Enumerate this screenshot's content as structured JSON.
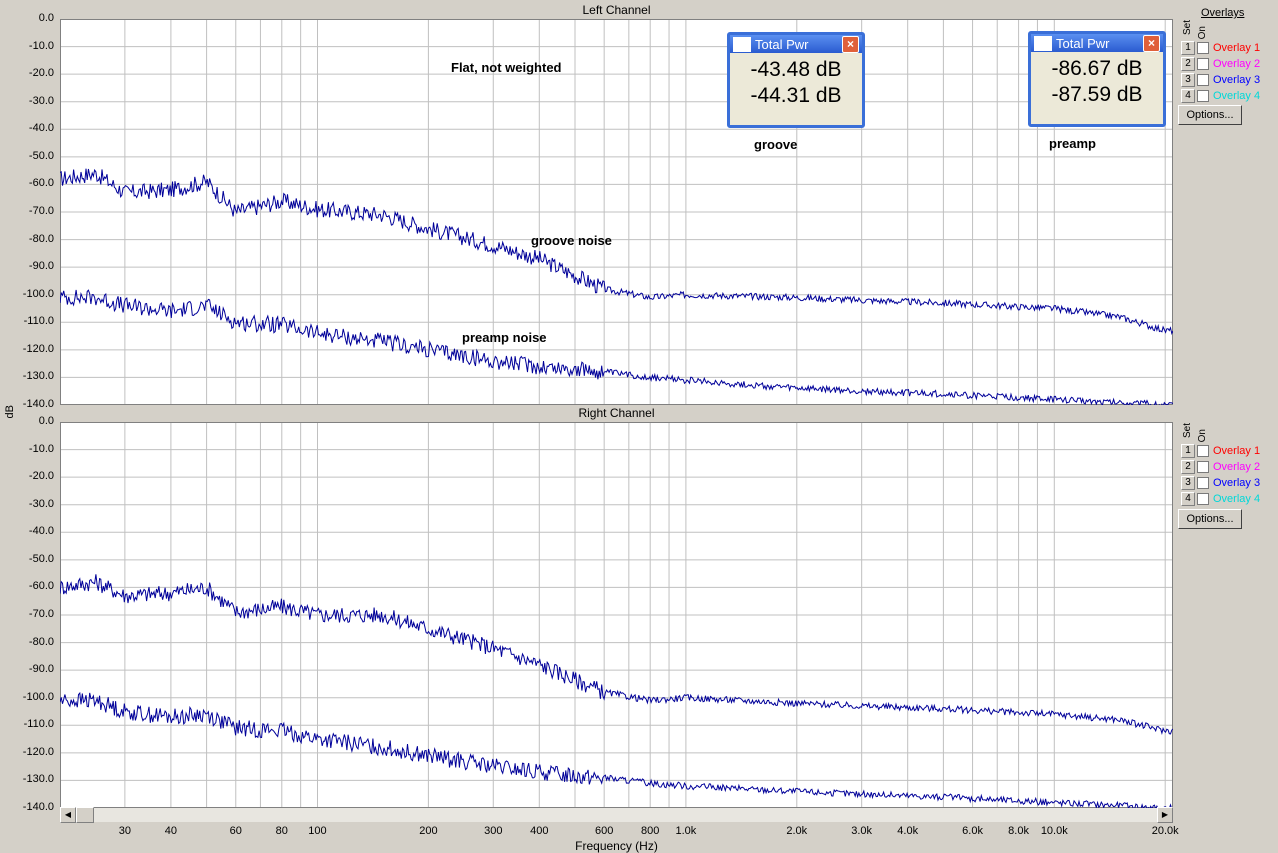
{
  "ylabel": "dB",
  "xlabel": "Frequency (Hz)",
  "annotations": {
    "flat": "Flat, not weighted",
    "groove": "groove",
    "preamp": "preamp",
    "groove_noise": "groove noise",
    "preamp_noise": "preamp noise"
  },
  "total_pwr": [
    {
      "title": "Total Pwr",
      "value1": "-43.48 dB",
      "value2": "-44.31 dB"
    },
    {
      "title": "Total Pwr",
      "value1": "-86.67 dB",
      "value2": "-87.59 dB"
    }
  ],
  "overlays": {
    "header": "Overlays",
    "set_label": "Set",
    "on_label": "On",
    "options_label": "Options...",
    "items": [
      {
        "num": "1",
        "label": "Overlay 1",
        "color": "#ff0000"
      },
      {
        "num": "2",
        "label": "Overlay 2",
        "color": "#ff00ff"
      },
      {
        "num": "3",
        "label": "Overlay 3",
        "color": "#0000ff"
      },
      {
        "num": "4",
        "label": "Overlay 4",
        "color": "#00d8d8"
      }
    ]
  },
  "colors": {
    "trace": "#000099",
    "grid": "#c0c0c0",
    "plot_bg": "#ffffff",
    "window_bg": "#d4d0c8"
  },
  "chart_data": [
    {
      "type": "line",
      "title": "Left Channel",
      "xscale": "log",
      "xlim": [
        20,
        21000
      ],
      "ylim": [
        -140,
        0
      ],
      "grid": true,
      "yticks": [
        "0.0",
        "-10.0",
        "-20.0",
        "-30.0",
        "-40.0",
        "-50.0",
        "-60.0",
        "-70.0",
        "-80.0",
        "-90.0",
        "-100.0",
        "-110.0",
        "-120.0",
        "-130.0",
        "-140.0"
      ],
      "series": [
        {
          "x": [
            20,
            25,
            30,
            40,
            50,
            60,
            80,
            100,
            150,
            200,
            300,
            400,
            600,
            800,
            1000,
            2000,
            3000,
            5000,
            10000,
            15000,
            20000
          ],
          "y": [
            -58,
            -56,
            -63,
            -62,
            -59,
            -70,
            -66,
            -69,
            -71,
            -76,
            -82,
            -87,
            -98,
            -101,
            -100,
            -101,
            -102,
            -103,
            -105,
            -108,
            -113
          ]
        },
        {
          "x": [
            20,
            25,
            30,
            40,
            50,
            60,
            80,
            100,
            150,
            200,
            300,
            400,
            600,
            800,
            1000,
            2000,
            3000,
            5000,
            10000,
            15000,
            20000
          ],
          "y": [
            -101,
            -101,
            -104,
            -106,
            -104,
            -110,
            -111,
            -114,
            -117,
            -120,
            -124,
            -126,
            -128,
            -130,
            -131,
            -134,
            -135,
            -136,
            -138,
            -139,
            -140
          ]
        }
      ]
    },
    {
      "type": "line",
      "title": "Right Channel",
      "xscale": "log",
      "xlim": [
        20,
        21000
      ],
      "ylim": [
        -140,
        0
      ],
      "grid": true,
      "yticks": [
        "0.0",
        "-10.0",
        "-20.0",
        "-30.0",
        "-40.0",
        "-50.0",
        "-60.0",
        "-70.0",
        "-80.0",
        "-90.0",
        "-100.0",
        "-110.0",
        "-120.0",
        "-130.0",
        "-140.0"
      ],
      "xtick_labels": [
        {
          "v": 30,
          "t": "30"
        },
        {
          "v": 40,
          "t": "40"
        },
        {
          "v": 60,
          "t": "60"
        },
        {
          "v": 80,
          "t": "80"
        },
        {
          "v": 100,
          "t": "100"
        },
        {
          "v": 200,
          "t": "200"
        },
        {
          "v": 300,
          "t": "300"
        },
        {
          "v": 400,
          "t": "400"
        },
        {
          "v": 600,
          "t": "600"
        },
        {
          "v": 800,
          "t": "800"
        },
        {
          "v": 1000,
          "t": "1.0k"
        },
        {
          "v": 2000,
          "t": "2.0k"
        },
        {
          "v": 3000,
          "t": "3.0k"
        },
        {
          "v": 4000,
          "t": "4.0k"
        },
        {
          "v": 6000,
          "t": "6.0k"
        },
        {
          "v": 8000,
          "t": "8.0k"
        },
        {
          "v": 10000,
          "t": "10.0k"
        },
        {
          "v": 20000,
          "t": "20.0k"
        }
      ],
      "series": [
        {
          "x": [
            20,
            25,
            30,
            40,
            50,
            60,
            80,
            100,
            150,
            200,
            300,
            400,
            600,
            800,
            1000,
            2000,
            3000,
            5000,
            10000,
            15000,
            20000
          ],
          "y": [
            -60,
            -58,
            -63,
            -62,
            -60,
            -69,
            -67,
            -70,
            -70,
            -75,
            -82,
            -88,
            -98,
            -101,
            -100,
            -102,
            -103,
            -104,
            -106,
            -108,
            -112
          ]
        },
        {
          "x": [
            20,
            25,
            30,
            40,
            50,
            60,
            80,
            100,
            150,
            200,
            300,
            400,
            600,
            800,
            1000,
            2000,
            3000,
            5000,
            10000,
            15000,
            20000
          ],
          "y": [
            -101,
            -101,
            -105,
            -107,
            -106,
            -111,
            -112,
            -115,
            -118,
            -121,
            -125,
            -127,
            -129,
            -131,
            -132,
            -134,
            -135,
            -136,
            -138,
            -139,
            -140
          ]
        }
      ]
    }
  ]
}
